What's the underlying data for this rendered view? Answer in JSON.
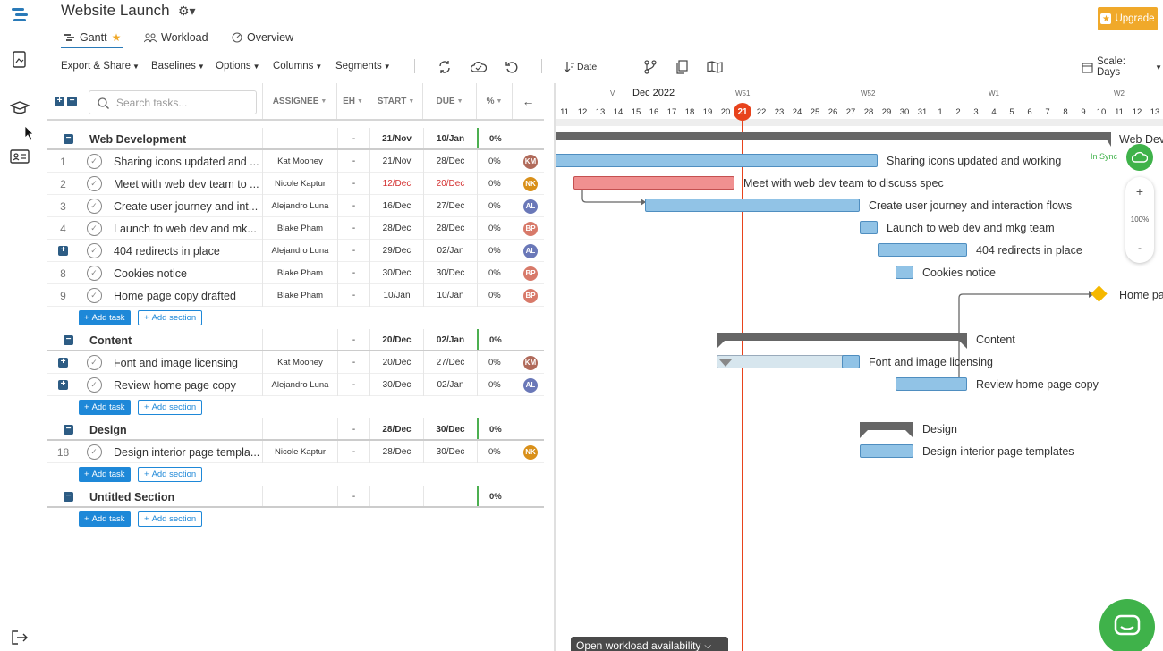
{
  "app": {
    "title": "Website Launch",
    "upgrade_label": "Upgrade",
    "sync_label": "In Sync",
    "zoom_level": "100%",
    "zoom_in": "+",
    "zoom_out": "-"
  },
  "tabs": [
    {
      "label": "Gantt"
    },
    {
      "label": "Workload"
    },
    {
      "label": "Overview"
    }
  ],
  "toolbar": {
    "export": "Export & Share",
    "baselines": "Baselines",
    "options": "Options",
    "columns": "Columns",
    "segments": "Segments",
    "date_sort": "Date",
    "scale": "Scale: Days"
  },
  "grid": {
    "search_placeholder": "Search tasks...",
    "headers": {
      "assignee": "ASSIGNEE",
      "eh": "EH",
      "start": "START",
      "due": "DUE",
      "pct": "%"
    },
    "add_task": "Add task",
    "add_section": "Add section"
  },
  "sections": [
    {
      "name": "Web Development",
      "eh": "-",
      "start": "21/Nov",
      "due": "10/Jan",
      "pct": "0%",
      "tasks": [
        {
          "num": "1",
          "name": "Sharing icons updated and ...",
          "assignee": "Kat Mooney",
          "eh": "-",
          "start": "21/Nov",
          "due": "28/Dec",
          "pct": "0%"
        },
        {
          "num": "2",
          "name": "Meet with web dev team to ...",
          "assignee": "Nicole Kaptur",
          "eh": "-",
          "start": "12/Dec",
          "due": "20/Dec",
          "pct": "0%"
        },
        {
          "num": "3",
          "name": "Create user journey and int...",
          "assignee": "Alejandro Luna",
          "eh": "-",
          "start": "16/Dec",
          "due": "27/Dec",
          "pct": "0%"
        },
        {
          "num": "4",
          "name": "Launch to web dev and mk...",
          "assignee": "Blake Pham",
          "eh": "-",
          "start": "28/Dec",
          "due": "28/Dec",
          "pct": "0%"
        },
        {
          "num": "",
          "name": "404 redirects in place",
          "assignee": "Alejandro Luna",
          "eh": "-",
          "start": "29/Dec",
          "due": "02/Jan",
          "pct": "0%"
        },
        {
          "num": "8",
          "name": "Cookies notice",
          "assignee": "Blake Pham",
          "eh": "-",
          "start": "30/Dec",
          "due": "30/Dec",
          "pct": "0%"
        },
        {
          "num": "9",
          "name": "Home page copy drafted",
          "assignee": "Blake Pham",
          "eh": "-",
          "start": "10/Jan",
          "due": "10/Jan",
          "pct": "0%"
        }
      ]
    },
    {
      "name": "Content",
      "eh": "-",
      "start": "20/Dec",
      "due": "02/Jan",
      "pct": "0%",
      "tasks": [
        {
          "num": "",
          "name": "Font and image licensing",
          "assignee": "Kat Mooney",
          "eh": "-",
          "start": "20/Dec",
          "due": "27/Dec",
          "pct": "0%"
        },
        {
          "num": "",
          "name": "Review home page copy",
          "assignee": "Alejandro Luna",
          "eh": "-",
          "start": "30/Dec",
          "due": "02/Jan",
          "pct": "0%"
        }
      ]
    },
    {
      "name": "Design",
      "eh": "-",
      "start": "28/Dec",
      "due": "30/Dec",
      "pct": "0%",
      "tasks": [
        {
          "num": "18",
          "name": "Design interior page templa...",
          "assignee": "Nicole Kaptur",
          "eh": "-",
          "start": "28/Dec",
          "due": "30/Dec",
          "pct": "0%"
        }
      ]
    },
    {
      "name": "Untitled Section",
      "eh": "-",
      "start": "",
      "due": "",
      "pct": "0%",
      "tasks": []
    }
  ],
  "gantt": {
    "month": "Dec 2022",
    "weeks": [
      "V",
      "W51",
      "W52",
      "W1",
      "W2"
    ],
    "days": [
      "11",
      "12",
      "13",
      "14",
      "15",
      "16",
      "17",
      "18",
      "19",
      "20",
      "21",
      "22",
      "23",
      "24",
      "25",
      "26",
      "27",
      "28",
      "29",
      "30",
      "31",
      "1",
      "2",
      "3",
      "4",
      "5",
      "6",
      "7",
      "8",
      "9",
      "10",
      "11",
      "12",
      "13"
    ],
    "today": "21",
    "labels": {
      "web_dev": "Web Dev",
      "t1": "Sharing icons updated and working",
      "t2": "Meet with web dev team to discuss spec",
      "t3": "Create user journey and interaction flows",
      "t4": "Launch to web dev and mkg team",
      "t5": "404 redirects in place",
      "t6": "Cookies notice",
      "t7": "Home pa",
      "content": "Content",
      "t8": "Font and image licensing",
      "t9": "Review home page copy",
      "design": "Design",
      "t10": "Design interior page templates"
    },
    "workload_button": "Open workload availability"
  },
  "colors": {
    "accent": "#2a7ab8",
    "today": "#e8431c",
    "bar": "#91c3e6",
    "overdue": "#f09090",
    "upgrade": "#f0a92a",
    "sync": "#3fb24a"
  }
}
